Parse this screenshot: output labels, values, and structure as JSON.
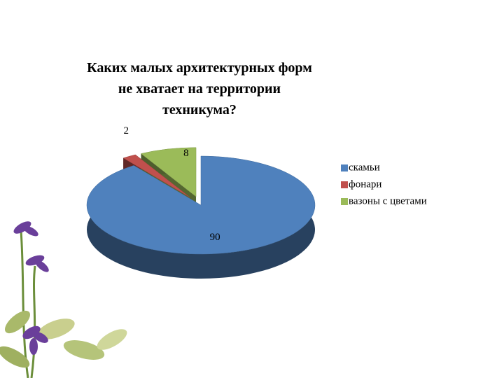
{
  "chart_data": {
    "type": "pie3d",
    "title": "Каких малых архитектурных форм не хватает на территории техникума?",
    "categories": [
      "скамьи",
      "фонари",
      "вазоны с цветами"
    ],
    "values": [
      90,
      2,
      8
    ],
    "colors": [
      "#4f81bd",
      "#c0504d",
      "#9bbb59"
    ],
    "legend": "right"
  }
}
